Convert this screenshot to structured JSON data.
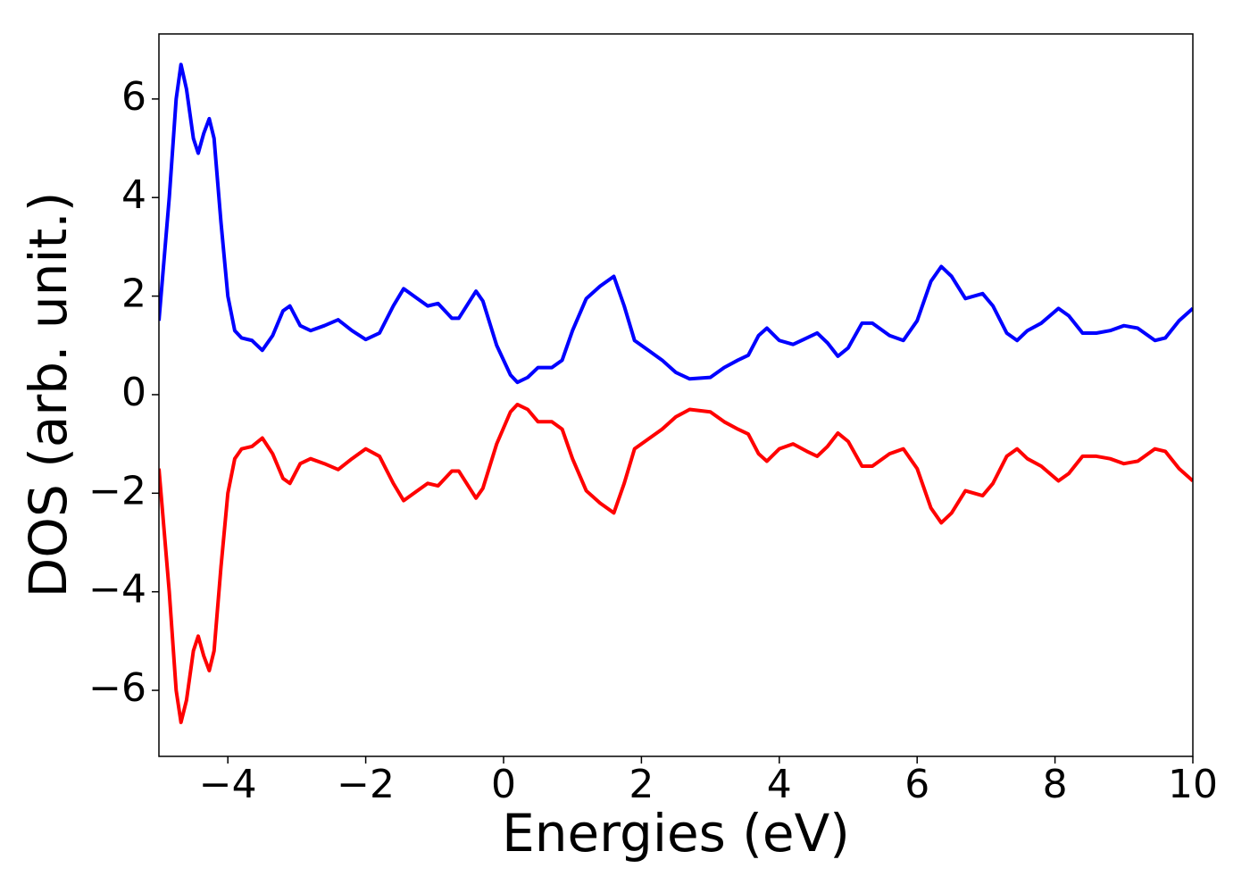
{
  "chart_data": {
    "type": "line",
    "xlabel": "Energies (eV)",
    "ylabel": "DOS (arb. unit.)",
    "x": [
      -5,
      -4.85,
      -4.75,
      -4.68,
      -4.6,
      -4.5,
      -4.43,
      -4.35,
      -4.27,
      -4.2,
      -4.1,
      -4.0,
      -3.9,
      -3.8,
      -3.65,
      -3.5,
      -3.35,
      -3.2,
      -3.1,
      -2.95,
      -2.8,
      -2.6,
      -2.4,
      -2.2,
      -2.0,
      -1.8,
      -1.6,
      -1.45,
      -1.25,
      -1.1,
      -0.95,
      -0.75,
      -0.65,
      -0.4,
      -0.3,
      -0.1,
      0.1,
      0.2,
      0.35,
      0.5,
      0.7,
      0.85,
      1.0,
      1.2,
      1.4,
      1.6,
      1.75,
      1.9,
      2.1,
      2.3,
      2.5,
      2.7,
      3.0,
      3.2,
      3.4,
      3.55,
      3.7,
      3.82,
      4.0,
      4.2,
      4.4,
      4.55,
      4.7,
      4.85,
      5.0,
      5.2,
      5.35,
      5.6,
      5.8,
      6.0,
      6.2,
      6.35,
      6.5,
      6.7,
      6.95,
      7.1,
      7.3,
      7.45,
      7.6,
      7.8,
      8.05,
      8.2,
      8.4,
      8.6,
      8.8,
      9.0,
      9.2,
      9.45,
      9.6,
      9.8,
      10
    ],
    "series": [
      {
        "color": "#0000ff",
        "values": [
          1.5,
          4.0,
          6.0,
          6.7,
          6.2,
          5.2,
          4.9,
          5.3,
          5.6,
          5.2,
          3.5,
          2.0,
          1.3,
          1.15,
          1.1,
          0.9,
          1.2,
          1.7,
          1.8,
          1.4,
          1.3,
          1.4,
          1.52,
          1.3,
          1.12,
          1.25,
          1.8,
          2.15,
          1.95,
          1.8,
          1.85,
          1.55,
          1.55,
          2.1,
          1.9,
          1.0,
          0.4,
          0.25,
          0.35,
          0.55,
          0.55,
          0.7,
          1.3,
          1.95,
          2.2,
          2.4,
          1.8,
          1.1,
          0.9,
          0.7,
          0.45,
          0.32,
          0.35,
          0.55,
          0.7,
          0.8,
          1.2,
          1.35,
          1.1,
          1.02,
          1.15,
          1.25,
          1.05,
          0.78,
          0.95,
          1.45,
          1.45,
          1.2,
          1.1,
          1.5,
          2.3,
          2.6,
          2.4,
          1.95,
          2.05,
          1.8,
          1.25,
          1.1,
          1.3,
          1.45,
          1.75,
          1.6,
          1.25,
          1.25,
          1.3,
          1.4,
          1.35,
          1.1,
          1.15,
          1.5,
          1.75
        ]
      },
      {
        "color": "#ff0000",
        "values": [
          -1.5,
          -4.0,
          -6.0,
          -6.65,
          -6.2,
          -5.2,
          -4.9,
          -5.3,
          -5.6,
          -5.2,
          -3.5,
          -2.0,
          -1.3,
          -1.1,
          -1.05,
          -0.88,
          -1.2,
          -1.7,
          -1.8,
          -1.4,
          -1.3,
          -1.4,
          -1.52,
          -1.3,
          -1.1,
          -1.25,
          -1.8,
          -2.15,
          -1.95,
          -1.8,
          -1.85,
          -1.55,
          -1.55,
          -2.1,
          -1.9,
          -1.0,
          -0.35,
          -0.2,
          -0.3,
          -0.55,
          -0.55,
          -0.7,
          -1.3,
          -1.95,
          -2.2,
          -2.4,
          -1.8,
          -1.1,
          -0.9,
          -0.7,
          -0.45,
          -0.3,
          -0.35,
          -0.55,
          -0.7,
          -0.8,
          -1.2,
          -1.35,
          -1.1,
          -1.0,
          -1.15,
          -1.25,
          -1.05,
          -0.78,
          -0.95,
          -1.45,
          -1.45,
          -1.2,
          -1.1,
          -1.5,
          -2.3,
          -2.6,
          -2.4,
          -1.95,
          -2.05,
          -1.8,
          -1.25,
          -1.1,
          -1.3,
          -1.45,
          -1.75,
          -1.6,
          -1.25,
          -1.25,
          -1.3,
          -1.4,
          -1.35,
          -1.1,
          -1.15,
          -1.5,
          -1.75
        ]
      }
    ],
    "xlim": [
      -5,
      10
    ],
    "xticks": [
      {
        "value": -4,
        "label": "−4"
      },
      {
        "value": -2,
        "label": "−2"
      },
      0,
      2,
      4,
      6,
      8,
      10
    ],
    "ylim": [
      -7.34,
      7.32
    ],
    "yticks": [
      {
        "value": -6,
        "label": "−6"
      },
      {
        "value": -4,
        "label": "−4"
      },
      {
        "value": -2,
        "label": "−2"
      },
      0,
      2,
      4,
      6
    ]
  }
}
